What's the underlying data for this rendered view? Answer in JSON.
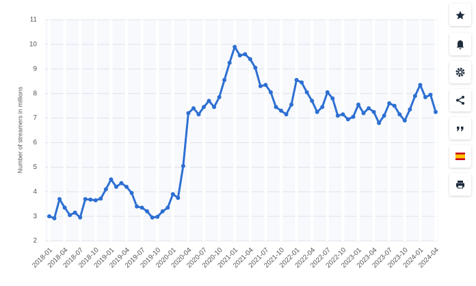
{
  "chart_data": {
    "type": "line",
    "y_label": "Number of streamers in millions",
    "categories": [
      "2018-01",
      null,
      null,
      "2018-04",
      null,
      null,
      "2018-07",
      null,
      null,
      "2018-10",
      null,
      null,
      "2019-01",
      null,
      null,
      "2019-04",
      null,
      null,
      "2019-07",
      null,
      null,
      "2019-10",
      null,
      null,
      "2020-01",
      null,
      null,
      "2020-04",
      null,
      null,
      "2020-07",
      null,
      null,
      "2020-10",
      null,
      null,
      "2021-01",
      null,
      null,
      "2021-04",
      null,
      null,
      "2021-07",
      null,
      null,
      "2021-10",
      null,
      null,
      "2022-01",
      null,
      null,
      "2022-04",
      null,
      null,
      "2022-07",
      null,
      null,
      "2022-10",
      null,
      null,
      "2023-01",
      null,
      null,
      "2023-04",
      null,
      null,
      "2023-07",
      null,
      null,
      "2023-10",
      null,
      null,
      "2024-01",
      null,
      null,
      "2024-04"
    ],
    "values": [
      3.0,
      2.92,
      3.7,
      3.35,
      3.05,
      3.15,
      2.95,
      3.7,
      3.68,
      3.65,
      3.72,
      4.1,
      4.5,
      4.2,
      4.35,
      4.2,
      3.95,
      3.4,
      3.35,
      3.2,
      2.95,
      2.98,
      3.2,
      3.35,
      3.9,
      3.75,
      5.05,
      7.2,
      7.4,
      7.15,
      7.45,
      7.7,
      7.45,
      7.85,
      8.55,
      9.25,
      9.9,
      9.55,
      9.6,
      9.4,
      9.05,
      8.3,
      8.35,
      8.05,
      7.45,
      7.3,
      7.15,
      7.55,
      8.55,
      8.45,
      8.05,
      7.7,
      7.25,
      7.45,
      8.05,
      7.8,
      7.1,
      7.15,
      6.95,
      7.05,
      7.55,
      7.2,
      7.4,
      7.25,
      6.8,
      7.1,
      7.6,
      7.5,
      7.15,
      6.9,
      7.35,
      7.9,
      8.35,
      7.85,
      7.95,
      7.25
    ],
    "color": "#2d6fd2",
    "ylim": [
      2,
      11
    ],
    "yticks": [
      2,
      3,
      4,
      5,
      6,
      7,
      8,
      9,
      10,
      11
    ],
    "grid": true
  }
}
